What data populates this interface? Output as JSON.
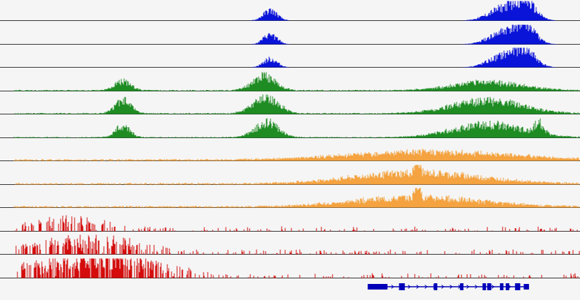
{
  "colors": {
    "background": "#f5f5f5",
    "baseline": "#333333",
    "gene": "#0000b8"
  },
  "chart_data": {
    "type": "area",
    "x_range": [
      0,
      1
    ],
    "y_range": [
      0,
      1
    ],
    "grid": false,
    "legend": "none",
    "tracks": [
      {
        "group": 1,
        "color": "#0a14d8",
        "peaks": [
          {
            "x": 0.466,
            "w": 0.012,
            "h": 0.55
          },
          {
            "x": 0.868,
            "w": 0.025,
            "h": 0.65
          },
          {
            "x": 0.905,
            "w": 0.018,
            "h": 0.95
          }
        ],
        "noise": 0.0,
        "sparse": 0,
        "seed": 11
      },
      {
        "group": 1,
        "color": "#0a14d8",
        "peaks": [
          {
            "x": 0.466,
            "w": 0.012,
            "h": 0.5
          },
          {
            "x": 0.868,
            "w": 0.025,
            "h": 0.6
          },
          {
            "x": 0.905,
            "w": 0.018,
            "h": 0.9
          }
        ],
        "noise": 0.0,
        "sparse": 0,
        "seed": 12
      },
      {
        "group": 1,
        "color": "#0a14d8",
        "peaks": [
          {
            "x": 0.466,
            "w": 0.012,
            "h": 0.45
          },
          {
            "x": 0.868,
            "w": 0.025,
            "h": 0.6
          },
          {
            "x": 0.905,
            "w": 0.018,
            "h": 0.85
          }
        ],
        "noise": 0.0,
        "sparse": 0,
        "seed": 13
      },
      {
        "group": 2,
        "color": "#1e8c23",
        "peaks": [
          {
            "x": 0.212,
            "w": 0.014,
            "h": 0.5
          },
          {
            "x": 0.455,
            "w": 0.02,
            "h": 0.8
          },
          {
            "x": 0.84,
            "w": 0.06,
            "h": 0.45
          }
        ],
        "noise": 0.06,
        "sparse": 0,
        "seed": 21
      },
      {
        "group": 2,
        "color": "#1e8c23",
        "peaks": [
          {
            "x": 0.212,
            "w": 0.014,
            "h": 0.7
          },
          {
            "x": 0.458,
            "w": 0.022,
            "h": 0.85
          },
          {
            "x": 0.84,
            "w": 0.06,
            "h": 0.7
          }
        ],
        "noise": 0.06,
        "sparse": 0,
        "seed": 22
      },
      {
        "group": 2,
        "color": "#1e8c23",
        "peaks": [
          {
            "x": 0.212,
            "w": 0.012,
            "h": 0.65
          },
          {
            "x": 0.46,
            "w": 0.02,
            "h": 0.8
          },
          {
            "x": 0.84,
            "w": 0.06,
            "h": 0.7
          },
          {
            "x": 0.93,
            "w": 0.008,
            "h": 0.6
          }
        ],
        "noise": 0.05,
        "sparse": 0,
        "seed": 23
      },
      {
        "group": 3,
        "color": "#f4a340",
        "peaks": [
          {
            "x": 0.74,
            "w": 0.14,
            "h": 0.45
          }
        ],
        "noise": 0.09,
        "sparse": 0,
        "seed": 31
      },
      {
        "group": 3,
        "color": "#f4a340",
        "peaks": [
          {
            "x": 0.72,
            "w": 0.11,
            "h": 0.6
          },
          {
            "x": 0.72,
            "w": 0.004,
            "h": 0.9
          }
        ],
        "noise": 0.08,
        "sparse": 0,
        "seed": 32
      },
      {
        "group": 3,
        "color": "#f4a340",
        "peaks": [
          {
            "x": 0.72,
            "w": 0.11,
            "h": 0.5
          },
          {
            "x": 0.72,
            "w": 0.004,
            "h": 0.9
          }
        ],
        "noise": 0.09,
        "sparse": 0,
        "seed": 33
      },
      {
        "group": 4,
        "color": "#d40c0c",
        "peaks": [
          {
            "x": 0.12,
            "w": 0.06,
            "h": 0.55
          }
        ],
        "noise": 0.0,
        "sparse": 1,
        "seed": 41
      },
      {
        "group": 4,
        "color": "#d40c0c",
        "peaks": [
          {
            "x": 0.15,
            "w": 0.09,
            "h": 0.7
          }
        ],
        "noise": 0.0,
        "sparse": 1,
        "seed": 42
      },
      {
        "group": 4,
        "color": "#d40c0c",
        "peaks": [
          {
            "x": 0.13,
            "w": 0.1,
            "h": 0.75
          },
          {
            "x": 0.22,
            "w": 0.08,
            "h": 0.4
          }
        ],
        "noise": 0.0,
        "sparse": 1,
        "seed": 43
      }
    ],
    "gene_model": {
      "start": 0.634,
      "end": 0.912,
      "strand": "+",
      "exons": [
        [
          0.634,
          0.668
        ],
        [
          0.688,
          0.698
        ],
        [
          0.748,
          0.754
        ],
        [
          0.793,
          0.799
        ],
        [
          0.832,
          0.838
        ],
        [
          0.84,
          0.847
        ],
        [
          0.862,
          0.868
        ],
        [
          0.872,
          0.878
        ],
        [
          0.888,
          0.897
        ],
        [
          0.903,
          0.912
        ]
      ]
    }
  }
}
